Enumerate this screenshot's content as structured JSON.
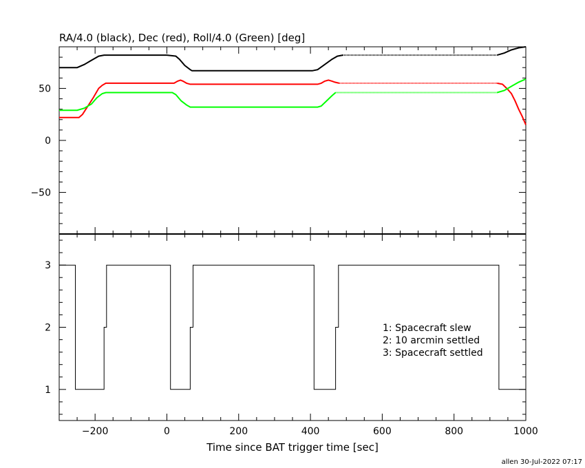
{
  "chart_data": [
    {
      "type": "line",
      "title": "RA/4.0 (black), Dec (red), Roll/4.0 (Green) [deg]",
      "xlim": [
        -300,
        1000
      ],
      "ylim": [
        -90,
        90
      ],
      "yticks": [
        -50,
        0,
        50
      ],
      "ytick_labels": [
        "−50",
        "0",
        "50"
      ],
      "grid": false,
      "series": [
        {
          "color": "#000000",
          "points": [
            [
              -300,
              70
            ],
            [
              -250,
              70
            ],
            [
              -230,
              73
            ],
            [
              -210,
              77
            ],
            [
              -190,
              81
            ],
            [
              -175,
              82
            ],
            [
              -100,
              82
            ],
            [
              0,
              82
            ],
            [
              25,
              81
            ],
            [
              35,
              78
            ],
            [
              50,
              72
            ],
            [
              65,
              68
            ],
            [
              70,
              67
            ],
            [
              200,
              67
            ],
            [
              405,
              67
            ],
            [
              420,
              68
            ],
            [
              440,
              73
            ],
            [
              460,
              78
            ],
            [
              475,
              81
            ],
            [
              490,
              82
            ],
            [
              600,
              82
            ],
            [
              800,
              82
            ],
            [
              920,
              82
            ],
            [
              940,
              84
            ],
            [
              960,
              87
            ],
            [
              980,
              89
            ],
            [
              1000,
              90
            ]
          ],
          "dotted_from": 490,
          "dotted_to": 920
        },
        {
          "color": "#ff0000",
          "points": [
            [
              -300,
              22
            ],
            [
              -245,
              22
            ],
            [
              -235,
              25
            ],
            [
              -220,
              33
            ],
            [
              -205,
              41
            ],
            [
              -190,
              50
            ],
            [
              -180,
              53
            ],
            [
              -170,
              55
            ],
            [
              0,
              55
            ],
            [
              20,
              55
            ],
            [
              30,
              57
            ],
            [
              38,
              58
            ],
            [
              45,
              57
            ],
            [
              55,
              55
            ],
            [
              65,
              54
            ],
            [
              70,
              54
            ],
            [
              300,
              54
            ],
            [
              420,
              54
            ],
            [
              430,
              55
            ],
            [
              440,
              57
            ],
            [
              450,
              58
            ],
            [
              460,
              57
            ],
            [
              468,
              56
            ],
            [
              480,
              55
            ],
            [
              600,
              55
            ],
            [
              800,
              55
            ],
            [
              920,
              55
            ],
            [
              935,
              54
            ],
            [
              950,
              49
            ],
            [
              960,
              45
            ],
            [
              970,
              38
            ],
            [
              980,
              30
            ],
            [
              990,
              23
            ],
            [
              1000,
              15
            ]
          ],
          "dotted_from": 480,
          "dotted_to": 920
        },
        {
          "color": "#00ff00",
          "points": [
            [
              -300,
              29
            ],
            [
              -250,
              29
            ],
            [
              -230,
              31
            ],
            [
              -210,
              35
            ],
            [
              -195,
              41
            ],
            [
              -180,
              45
            ],
            [
              -170,
              46
            ],
            [
              0,
              46
            ],
            [
              15,
              46
            ],
            [
              25,
              44
            ],
            [
              40,
              38
            ],
            [
              55,
              34
            ],
            [
              65,
              32
            ],
            [
              70,
              32
            ],
            [
              300,
              32
            ],
            [
              420,
              32
            ],
            [
              430,
              33
            ],
            [
              445,
              38
            ],
            [
              460,
              43
            ],
            [
              470,
              46
            ],
            [
              600,
              46
            ],
            [
              800,
              46
            ],
            [
              920,
              46
            ],
            [
              940,
              48
            ],
            [
              960,
              52
            ],
            [
              980,
              56
            ],
            [
              1000,
              59
            ]
          ],
          "dotted_from": 470,
          "dotted_to": 920
        }
      ]
    },
    {
      "type": "line",
      "xlim": [
        -300,
        1000
      ],
      "ylim": [
        0.5,
        3.5
      ],
      "yticks": [
        1,
        2,
        3
      ],
      "ytick_labels": [
        "1",
        "2",
        "3"
      ],
      "xticks": [
        -200,
        0,
        200,
        400,
        600,
        800,
        1000
      ],
      "xtick_labels": [
        "−200",
        "0",
        "200",
        "400",
        "600",
        "800",
        "1000"
      ],
      "xlabel": "Time since BAT trigger time [sec]",
      "grid": false,
      "legend": [
        "1: Spacecraft slew",
        "2: 10 arcmin settled",
        "3: Spacecraft settled"
      ],
      "legend_placement": "middle-right",
      "series": [
        {
          "color": "#000000",
          "step_points": [
            [
              -300,
              3
            ],
            [
              -255,
              3
            ],
            [
              -255,
              1
            ],
            [
              -175,
              1
            ],
            [
              -175,
              2
            ],
            [
              -168,
              2
            ],
            [
              -168,
              3
            ],
            [
              10,
              3
            ],
            [
              10,
              1
            ],
            [
              65,
              1
            ],
            [
              65,
              2
            ],
            [
              73,
              2
            ],
            [
              73,
              3
            ],
            [
              410,
              3
            ],
            [
              410,
              1
            ],
            [
              470,
              1
            ],
            [
              470,
              2
            ],
            [
              478,
              2
            ],
            [
              478,
              3
            ],
            [
              925,
              3
            ],
            [
              925,
              1
            ],
            [
              1000,
              1
            ]
          ]
        }
      ]
    }
  ],
  "footer": "allen 30-Jul-2022 07:17"
}
